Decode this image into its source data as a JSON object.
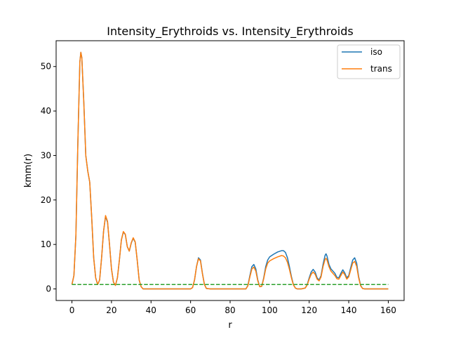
{
  "chart_data": {
    "type": "line",
    "title": "Intensity_Erythroids vs. Intensity_Erythroids",
    "xlabel": "r",
    "ylabel": "kmm(r)",
    "xlim": [
      -8,
      168
    ],
    "ylim": [
      -2.6,
      55.8
    ],
    "xticks": [
      0,
      20,
      40,
      60,
      80,
      100,
      120,
      140,
      160
    ],
    "yticks": [
      0,
      10,
      20,
      30,
      40,
      50
    ],
    "grid": false,
    "legend_position": "top-right",
    "series": [
      {
        "name": "iso",
        "color": "#1f77b4",
        "style": "solid",
        "points": [
          [
            0,
            1
          ],
          [
            1,
            3
          ],
          [
            2,
            12
          ],
          [
            3,
            33
          ],
          [
            4,
            51
          ],
          [
            4.5,
            53.2
          ],
          [
            5,
            52
          ],
          [
            6,
            42
          ],
          [
            7,
            30
          ],
          [
            8,
            26.5
          ],
          [
            9,
            24
          ],
          [
            10,
            16
          ],
          [
            11,
            7
          ],
          [
            12,
            2.5
          ],
          [
            13,
            1
          ],
          [
            14,
            2
          ],
          [
            15,
            7
          ],
          [
            16,
            13
          ],
          [
            17,
            16.3
          ],
          [
            18,
            15
          ],
          [
            19,
            10
          ],
          [
            20,
            4.5
          ],
          [
            21,
            1.5
          ],
          [
            22,
            0.8
          ],
          [
            23,
            2.5
          ],
          [
            24,
            6.5
          ],
          [
            25,
            11
          ],
          [
            26,
            12.8
          ],
          [
            27,
            12.2
          ],
          [
            28,
            9.5
          ],
          [
            29,
            8.5
          ],
          [
            30,
            10.3
          ],
          [
            31,
            11.4
          ],
          [
            32,
            10.5
          ],
          [
            33,
            6.5
          ],
          [
            34,
            2
          ],
          [
            35,
            0.5
          ],
          [
            36,
            0
          ],
          [
            40,
            0
          ],
          [
            60,
            0
          ],
          [
            61,
            0.3
          ],
          [
            62,
            2
          ],
          [
            63,
            5
          ],
          [
            64,
            7
          ],
          [
            65,
            6.5
          ],
          [
            66,
            3.5
          ],
          [
            67,
            1
          ],
          [
            68,
            0.1
          ],
          [
            70,
            0
          ],
          [
            88,
            0
          ],
          [
            89,
            0.8
          ],
          [
            90,
            3
          ],
          [
            91,
            5
          ],
          [
            92,
            5.5
          ],
          [
            93,
            4.5
          ],
          [
            94,
            2
          ],
          [
            95,
            0.5
          ],
          [
            96,
            0.6
          ],
          [
            97,
            2.5
          ],
          [
            98,
            5
          ],
          [
            99,
            6.5
          ],
          [
            100,
            7.2
          ],
          [
            102,
            7.8
          ],
          [
            104,
            8.3
          ],
          [
            106,
            8.6
          ],
          [
            107,
            8.6
          ],
          [
            108,
            8.2
          ],
          [
            109,
            7
          ],
          [
            110,
            5
          ],
          [
            111,
            2.8
          ],
          [
            112,
            1
          ],
          [
            113,
            0.2
          ],
          [
            114,
            0
          ],
          [
            116,
            0
          ],
          [
            118,
            0.2
          ],
          [
            119,
            1
          ],
          [
            120,
            2.5
          ],
          [
            121,
            3.8
          ],
          [
            122,
            4.4
          ],
          [
            123,
            3.8
          ],
          [
            124,
            2.5
          ],
          [
            125,
            2
          ],
          [
            126,
            3
          ],
          [
            127,
            5.5
          ],
          [
            128,
            7.5
          ],
          [
            128.5,
            7.9
          ],
          [
            129,
            7.4
          ],
          [
            130,
            5.5
          ],
          [
            131,
            4.5
          ],
          [
            132,
            4
          ],
          [
            133,
            3.5
          ],
          [
            134,
            2.6
          ],
          [
            135,
            2.5
          ],
          [
            136,
            3.5
          ],
          [
            137,
            4.3
          ],
          [
            138,
            3.6
          ],
          [
            139,
            2.5
          ],
          [
            140,
            3
          ],
          [
            141,
            4.8
          ],
          [
            142,
            6.5
          ],
          [
            143,
            7
          ],
          [
            144,
            5.8
          ],
          [
            145,
            2.8
          ],
          [
            146,
            0.8
          ],
          [
            147,
            0.1
          ],
          [
            148,
            0
          ],
          [
            160,
            0
          ]
        ]
      },
      {
        "name": "trans",
        "color": "#ff7f0e",
        "style": "solid",
        "points": [
          [
            0,
            1
          ],
          [
            1,
            3
          ],
          [
            2,
            12
          ],
          [
            3,
            33
          ],
          [
            4,
            51
          ],
          [
            4.5,
            53.2
          ],
          [
            5,
            52
          ],
          [
            6,
            42
          ],
          [
            7,
            30
          ],
          [
            8,
            26.5
          ],
          [
            9,
            24
          ],
          [
            10,
            16
          ],
          [
            11,
            7
          ],
          [
            12,
            2.5
          ],
          [
            13,
            1
          ],
          [
            14,
            2
          ],
          [
            15,
            7
          ],
          [
            16,
            13
          ],
          [
            17,
            16.5
          ],
          [
            18,
            15.2
          ],
          [
            19,
            10
          ],
          [
            20,
            4.5
          ],
          [
            21,
            1.5
          ],
          [
            22,
            0.8
          ],
          [
            23,
            2.5
          ],
          [
            24,
            6.5
          ],
          [
            25,
            11
          ],
          [
            26,
            12.9
          ],
          [
            27,
            12.3
          ],
          [
            28,
            9.5
          ],
          [
            29,
            8.5
          ],
          [
            30,
            10.4
          ],
          [
            31,
            11.5
          ],
          [
            32,
            10.6
          ],
          [
            33,
            6.5
          ],
          [
            34,
            2
          ],
          [
            35,
            0.5
          ],
          [
            36,
            0
          ],
          [
            40,
            0
          ],
          [
            60,
            0
          ],
          [
            61,
            0.3
          ],
          [
            62,
            2
          ],
          [
            63,
            5
          ],
          [
            64,
            6.8
          ],
          [
            65,
            6.3
          ],
          [
            66,
            3.4
          ],
          [
            67,
            1
          ],
          [
            68,
            0.1
          ],
          [
            70,
            0
          ],
          [
            88,
            0
          ],
          [
            89,
            0.7
          ],
          [
            90,
            2.7
          ],
          [
            91,
            4.5
          ],
          [
            92,
            4.9
          ],
          [
            93,
            4
          ],
          [
            94,
            1.8
          ],
          [
            95,
            0.5
          ],
          [
            96,
            0.6
          ],
          [
            97,
            2.3
          ],
          [
            98,
            4.5
          ],
          [
            99,
            5.8
          ],
          [
            100,
            6.3
          ],
          [
            102,
            6.8
          ],
          [
            104,
            7.2
          ],
          [
            106,
            7.5
          ],
          [
            107,
            7.4
          ],
          [
            108,
            7
          ],
          [
            109,
            6
          ],
          [
            110,
            4.4
          ],
          [
            111,
            2.5
          ],
          [
            112,
            0.9
          ],
          [
            113,
            0.2
          ],
          [
            114,
            0
          ],
          [
            116,
            0
          ],
          [
            118,
            0.2
          ],
          [
            119,
            0.9
          ],
          [
            120,
            2.2
          ],
          [
            121,
            3.3
          ],
          [
            122,
            3.8
          ],
          [
            123,
            3.3
          ],
          [
            124,
            2.2
          ],
          [
            125,
            1.8
          ],
          [
            126,
            2.7
          ],
          [
            127,
            5
          ],
          [
            128,
            6.6
          ],
          [
            128.5,
            6.9
          ],
          [
            129,
            6.5
          ],
          [
            130,
            5
          ],
          [
            131,
            4
          ],
          [
            132,
            3.5
          ],
          [
            133,
            3
          ],
          [
            134,
            2.3
          ],
          [
            135,
            2.2
          ],
          [
            136,
            3
          ],
          [
            137,
            3.8
          ],
          [
            138,
            3.2
          ],
          [
            139,
            2.2
          ],
          [
            140,
            2.7
          ],
          [
            141,
            4.3
          ],
          [
            142,
            5.8
          ],
          [
            143,
            6.2
          ],
          [
            144,
            5.1
          ],
          [
            145,
            2.5
          ],
          [
            146,
            0.7
          ],
          [
            147,
            0.1
          ],
          [
            148,
            0
          ],
          [
            160,
            0
          ]
        ]
      },
      {
        "color": "#2ca02c",
        "style": "dashed",
        "points": [
          [
            0,
            1
          ],
          [
            160,
            1
          ]
        ]
      }
    ]
  }
}
